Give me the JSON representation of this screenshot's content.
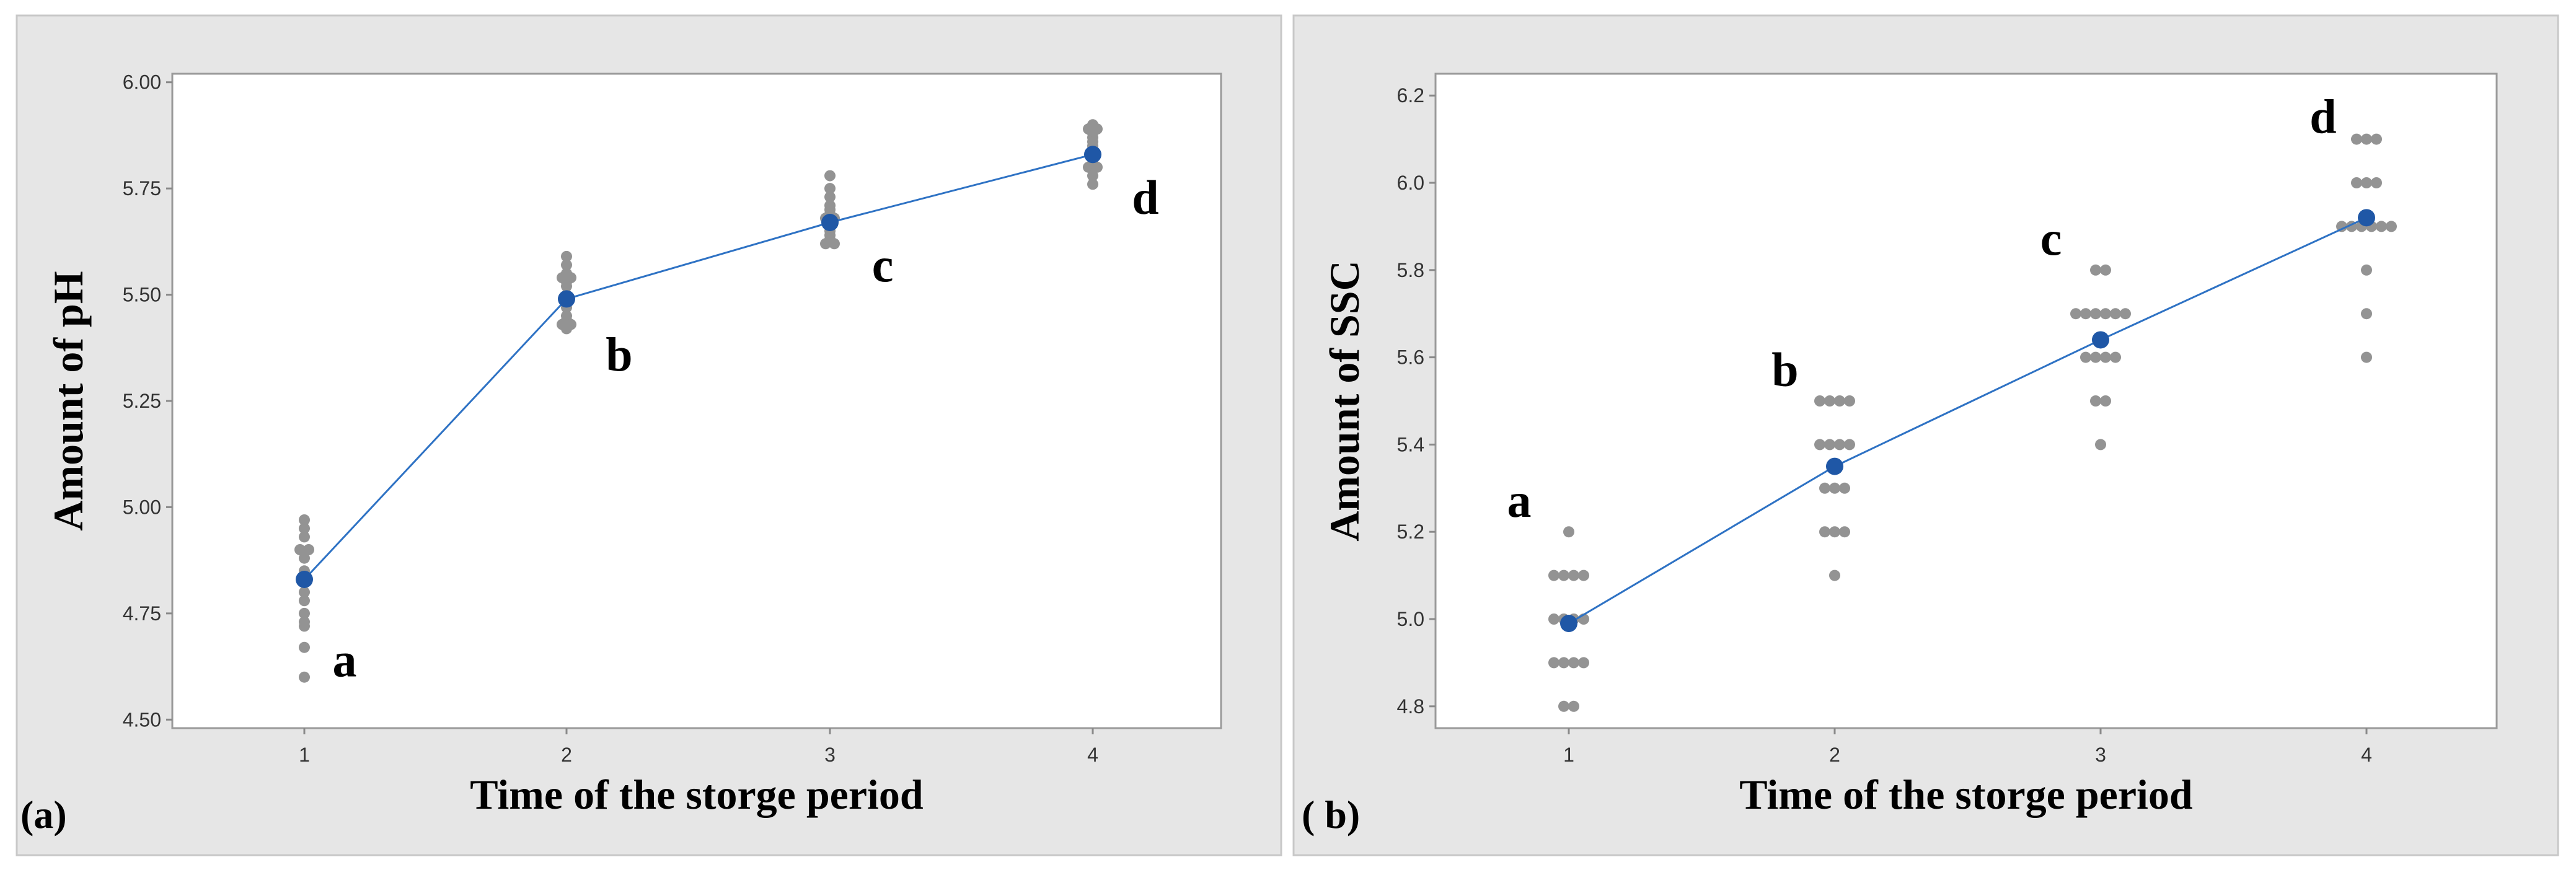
{
  "chart_data": [
    {
      "type": "scatter",
      "panel_label": "(a)",
      "xlabel": "Time of the storge period",
      "ylabel": "Amount of pH",
      "categories": [
        "1",
        "2",
        "3",
        "4"
      ],
      "ylim": [
        4.48,
        6.02
      ],
      "yticks": [
        4.5,
        4.75,
        5.0,
        5.25,
        5.5,
        5.75,
        6.0
      ],
      "ytick_labels": [
        "4.50",
        "4.75",
        "5.00",
        "5.25",
        "5.50",
        "5.75",
        "6.00"
      ],
      "series": [
        {
          "name": "Individual observations",
          "points": [
            {
              "x": 1,
              "values": [
                4.97,
                4.95,
                4.93,
                4.9,
                4.9,
                4.88,
                4.85,
                4.83,
                4.8,
                4.78,
                4.75,
                4.73,
                4.72,
                4.67,
                4.6
              ]
            },
            {
              "x": 2,
              "values": [
                5.59,
                5.57,
                5.55,
                5.54,
                5.54,
                5.53,
                5.52,
                5.5,
                5.49,
                5.47,
                5.45,
                5.44,
                5.43,
                5.43,
                5.42
              ]
            },
            {
              "x": 3,
              "values": [
                5.78,
                5.75,
                5.73,
                5.71,
                5.7,
                5.69,
                5.68,
                5.68,
                5.67,
                5.66,
                5.65,
                5.64,
                5.63,
                5.62,
                5.62
              ]
            },
            {
              "x": 4,
              "values": [
                5.9,
                5.89,
                5.89,
                5.88,
                5.87,
                5.86,
                5.85,
                5.84,
                5.83,
                5.82,
                5.81,
                5.8,
                5.8,
                5.78,
                5.76
              ]
            }
          ]
        },
        {
          "name": "Mean",
          "x": [
            1,
            2,
            3,
            4
          ],
          "values": [
            4.83,
            5.49,
            5.67,
            5.83
          ]
        }
      ],
      "annotations": [
        {
          "text": "a",
          "x": 1,
          "y": 4.66
        },
        {
          "text": "b",
          "x": 2,
          "y": 5.43
        },
        {
          "text": "c",
          "x": 3,
          "y": 5.64
        },
        {
          "text": "d",
          "x": 4,
          "y": 5.8
        }
      ]
    },
    {
      "type": "scatter",
      "panel_label": "( b)",
      "xlabel": "Time of the storge period",
      "ylabel": "Amount of SSC",
      "categories": [
        "1",
        "2",
        "3",
        "4"
      ],
      "ylim": [
        4.75,
        6.25
      ],
      "yticks": [
        4.8,
        5.0,
        5.2,
        5.4,
        5.6,
        5.8,
        6.0,
        6.2
      ],
      "ytick_labels": [
        "4.8",
        "5.0",
        "5.2",
        "5.4",
        "5.6",
        "5.8",
        "6.0",
        "6.2"
      ],
      "series": [
        {
          "name": "Individual observations",
          "points": [
            {
              "x": 1,
              "values": [
                5.2,
                5.1,
                5.1,
                5.1,
                5.1,
                5.0,
                5.0,
                5.0,
                5.0,
                4.9,
                4.9,
                4.9,
                4.9,
                4.8,
                4.8
              ]
            },
            {
              "x": 2,
              "values": [
                5.5,
                5.5,
                5.5,
                5.5,
                5.4,
                5.4,
                5.4,
                5.4,
                5.3,
                5.3,
                5.3,
                5.2,
                5.2,
                5.2,
                5.1
              ]
            },
            {
              "x": 3,
              "values": [
                5.8,
                5.8,
                5.7,
                5.7,
                5.7,
                5.7,
                5.7,
                5.7,
                5.6,
                5.6,
                5.6,
                5.6,
                5.5,
                5.5,
                5.4
              ]
            },
            {
              "x": 4,
              "values": [
                6.1,
                6.1,
                6.1,
                6.0,
                6.0,
                6.0,
                5.9,
                5.9,
                5.9,
                5.9,
                5.9,
                5.8,
                5.7,
                5.6,
                5.9
              ]
            }
          ]
        },
        {
          "name": "Mean",
          "x": [
            1,
            2,
            3,
            4
          ],
          "values": [
            4.99,
            5.35,
            5.64,
            5.92
          ]
        }
      ],
      "annotations": [
        {
          "text": "a",
          "x": 1,
          "y": 5.22
        },
        {
          "text": "b",
          "x": 2,
          "y": 5.52
        },
        {
          "text": "c",
          "x": 3,
          "y": 5.82
        },
        {
          "text": "d",
          "x": 4,
          "y": 6.1
        }
      ]
    }
  ]
}
